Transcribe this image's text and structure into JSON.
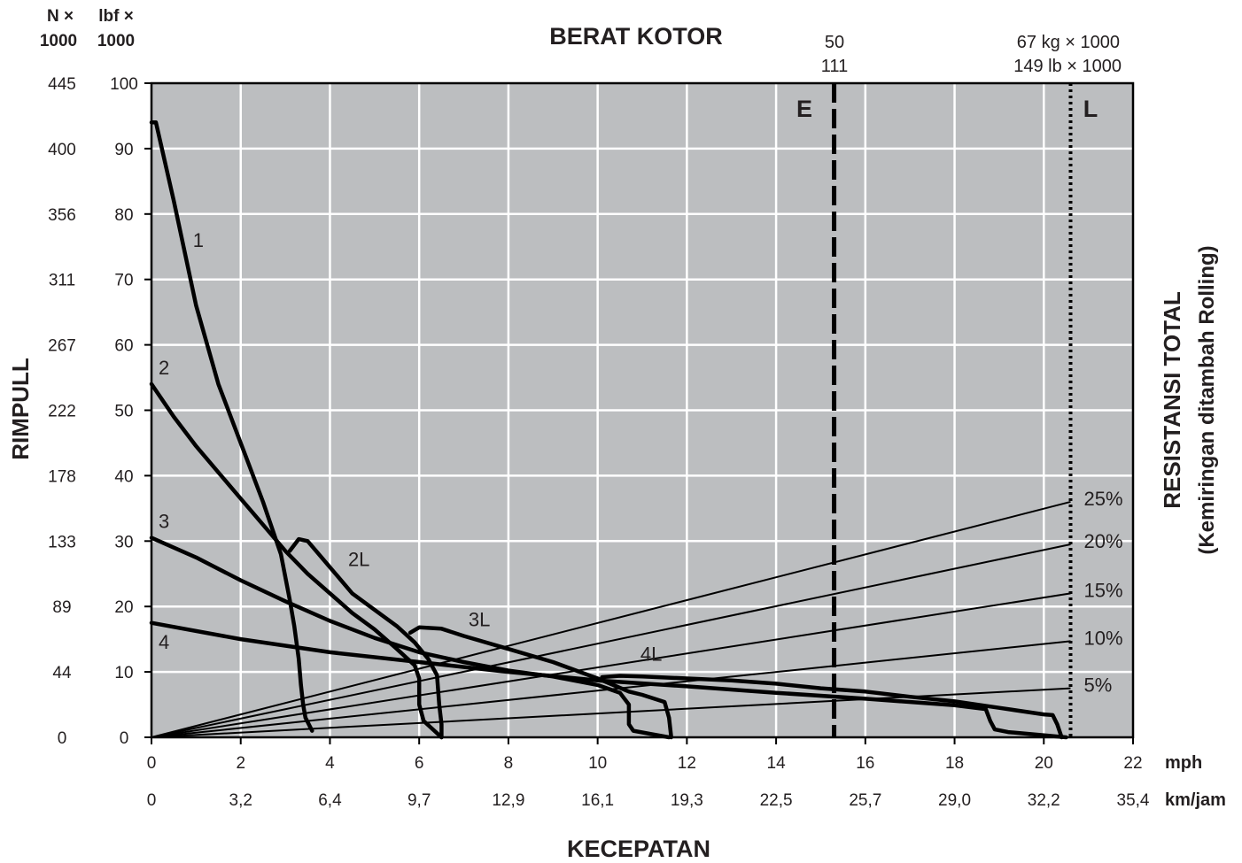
{
  "chart_data": {
    "type": "line",
    "title": "BERAT KOTOR",
    "xlabel": "KECEPATAN",
    "ylabel": "RIMPULL",
    "y2label": "RESISTANSI TOTAL",
    "y2sublabel": "(Kemiringan ditambah Rolling)",
    "xlim": [
      0,
      22
    ],
    "ylim": [
      0,
      100
    ],
    "grid": true,
    "grid_color": "#ffffff",
    "plot_background": "#bcbec0",
    "line_color": "#000000",
    "x_ticks": [
      0,
      2,
      4,
      6,
      8,
      10,
      12,
      14,
      16,
      18,
      20,
      22
    ],
    "x_tick_labels_mph": [
      "0",
      "2",
      "4",
      "6",
      "8",
      "10",
      "12",
      "14",
      "16",
      "18",
      "20",
      "22"
    ],
    "x_tick_labels_kmh": [
      "0",
      "3,2",
      "6,4",
      "9,7",
      "12,9",
      "16,1",
      "19,3",
      "22,5",
      "25,7",
      "29,0",
      "32,2",
      "35,4"
    ],
    "x_unit_mph": "mph",
    "x_unit_kmh": "km/jam",
    "y_ticks": [
      0,
      10,
      20,
      30,
      40,
      50,
      60,
      70,
      80,
      90,
      100
    ],
    "y_tick_labels_lbf": [
      "0",
      "10",
      "20",
      "30",
      "40",
      "50",
      "60",
      "70",
      "80",
      "90",
      "100"
    ],
    "y_tick_labels_n": [
      "0",
      "44",
      "89",
      "133",
      "178",
      "222",
      "267",
      "311",
      "356",
      "400",
      "445"
    ],
    "y_unit_n": [
      "N ×",
      "1000"
    ],
    "y_unit_lbf": [
      "lbf ×",
      "1000"
    ],
    "weight_lines": [
      {
        "name": "E",
        "x": 15.3,
        "style": "dashed",
        "label_top": [
          "50",
          "111"
        ]
      },
      {
        "name": "L",
        "x": 20.6,
        "style": "dotted",
        "label_top": [
          "67 kg × 1000",
          "149 lb × 1000"
        ]
      }
    ],
    "series": [
      {
        "name": "1",
        "x": [
          0,
          0.1,
          0.5,
          1.0,
          1.5,
          2.0,
          2.5,
          2.9,
          3.1,
          3.2,
          3.3,
          3.35,
          3.4,
          3.45,
          3.6
        ],
        "y": [
          94,
          94,
          82,
          66,
          54,
          45,
          36,
          28,
          21,
          17,
          12,
          8,
          5,
          3,
          1
        ]
      },
      {
        "name": "2",
        "x": [
          0,
          0.5,
          1.0,
          1.5,
          2.0,
          2.5,
          3.0,
          3.5,
          4.0,
          4.5,
          5.0,
          5.5,
          5.9,
          6.0,
          6.0,
          6.1,
          6.5
        ],
        "y": [
          54,
          49,
          44.5,
          40.5,
          36.5,
          32.5,
          28.5,
          25,
          22,
          19,
          16.5,
          13.5,
          11,
          9,
          5,
          2.5,
          0
        ]
      },
      {
        "name": "2L",
        "x": [
          3.1,
          3.3,
          3.5,
          4.0,
          4.5,
          5.0,
          5.5,
          5.9,
          6.2,
          6.4,
          6.45,
          6.5,
          6.5
        ],
        "y": [
          28.5,
          30.3,
          30,
          26,
          22,
          19.5,
          17,
          14.5,
          12,
          9.5,
          5,
          2,
          0
        ]
      },
      {
        "name": "3",
        "x": [
          0,
          1,
          2,
          3,
          4,
          5,
          6,
          7,
          8,
          9,
          10,
          10.5,
          10.7,
          10.7,
          10.8,
          11.2,
          11.6
        ],
        "y": [
          30.5,
          27.5,
          24,
          20.8,
          17.8,
          15.2,
          13,
          11.5,
          10.2,
          9.3,
          8,
          6.8,
          5,
          2,
          1,
          0.5,
          0
        ]
      },
      {
        "name": "3L",
        "x": [
          5.8,
          6.0,
          6.5,
          7.0,
          8.0,
          9.0,
          10.0,
          10.7,
          11.0,
          11.5,
          11.6,
          11.65
        ],
        "y": [
          16,
          16.8,
          16.6,
          15.5,
          13.5,
          11.5,
          9,
          7,
          6.5,
          5.4,
          3,
          0
        ]
      },
      {
        "name": "4",
        "x": [
          0,
          2,
          4,
          6,
          8,
          10,
          12,
          14,
          16,
          18,
          18.7,
          18.8,
          18.9,
          19.2,
          20.5
        ],
        "y": [
          17.5,
          15,
          13,
          11.5,
          10,
          8.7,
          7.8,
          6.8,
          5.9,
          4.9,
          4.3,
          2.5,
          1.2,
          0.8,
          0
        ]
      },
      {
        "name": "4L",
        "x": [
          10.1,
          10.5,
          11.0,
          12.0,
          13.0,
          14.0,
          15.0,
          16.0,
          17.0,
          18.0,
          19.0,
          20.0,
          20.2,
          20.3,
          20.4
        ],
        "y": [
          9.2,
          9.4,
          9.3,
          9.0,
          8.7,
          8.2,
          7.5,
          7.0,
          6.2,
          5.5,
          4.5,
          3.5,
          3.4,
          2.0,
          0
        ]
      }
    ],
    "resistance_lines": [
      {
        "name": "5%",
        "x": [
          0,
          20.6
        ],
        "y": [
          0,
          7.5
        ]
      },
      {
        "name": "10%",
        "x": [
          0,
          20.6
        ],
        "y": [
          0,
          14.7
        ]
      },
      {
        "name": "15%",
        "x": [
          0,
          20.6
        ],
        "y": [
          0,
          22
        ]
      },
      {
        "name": "20%",
        "x": [
          0,
          20.6
        ],
        "y": [
          0,
          29.5
        ]
      },
      {
        "name": "25%",
        "x": [
          0,
          20.6
        ],
        "y": [
          0,
          36
        ]
      }
    ],
    "curve_labels": [
      {
        "text": "1",
        "x": 1.05,
        "y": 75
      },
      {
        "text": "2",
        "x": 0.28,
        "y": 55.5
      },
      {
        "text": "2L",
        "x": 4.65,
        "y": 26.2
      },
      {
        "text": "3",
        "x": 0.28,
        "y": 32
      },
      {
        "text": "3L",
        "x": 7.35,
        "y": 17
      },
      {
        "text": "4",
        "x": 0.28,
        "y": 13.5
      },
      {
        "text": "4L",
        "x": 11.2,
        "y": 11.7
      }
    ]
  }
}
